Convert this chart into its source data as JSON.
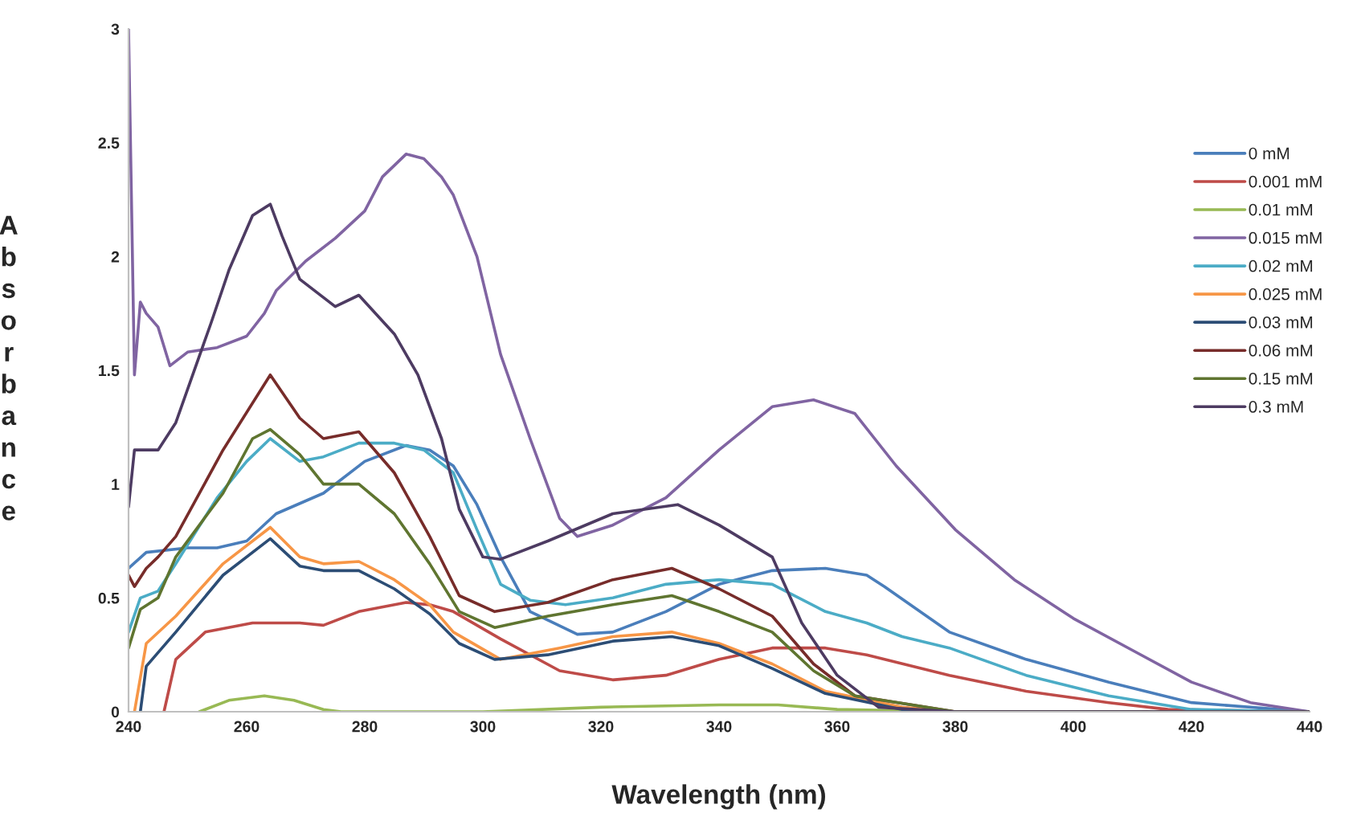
{
  "chart_data": {
    "type": "line",
    "xlabel": "Wavelength (nm)",
    "ylabel": "Absorbance",
    "xlim": [
      240,
      440
    ],
    "xticks": [
      240,
      260,
      280,
      300,
      320,
      340,
      360,
      380,
      400,
      420,
      440
    ],
    "ylim": [
      0,
      3
    ],
    "yticks": [
      0,
      0.5,
      1,
      1.5,
      2,
      2.5,
      3
    ],
    "legend": "right",
    "grid": false,
    "marker": "none",
    "line_style": "solid",
    "series": [
      {
        "name": "0 mM",
        "color": "#4a7ebb",
        "x": [
          240,
          243,
          250,
          255,
          260,
          265,
          273,
          280,
          287,
          291,
          295,
          299,
          303,
          308,
          316,
          322,
          331,
          340,
          349,
          358,
          365,
          368,
          379,
          392,
          406,
          420,
          440
        ],
        "values": [
          0.63,
          0.7,
          0.72,
          0.72,
          0.75,
          0.87,
          0.96,
          1.1,
          1.17,
          1.15,
          1.08,
          0.91,
          0.68,
          0.44,
          0.34,
          0.35,
          0.44,
          0.56,
          0.62,
          0.63,
          0.6,
          0.55,
          0.35,
          0.23,
          0.13,
          0.04,
          0
        ]
      },
      {
        "name": "0.001 mM",
        "color": "#be4b48",
        "x": [
          246,
          248,
          253,
          261,
          269,
          273,
          279,
          287,
          291,
          295,
          303,
          313,
          322,
          331,
          340,
          349,
          358,
          365,
          379,
          392,
          406,
          416,
          440
        ],
        "values": [
          0,
          0.23,
          0.35,
          0.39,
          0.39,
          0.38,
          0.44,
          0.48,
          0.47,
          0.44,
          0.32,
          0.18,
          0.14,
          0.16,
          0.23,
          0.28,
          0.28,
          0.25,
          0.16,
          0.09,
          0.04,
          0.01,
          0
        ]
      },
      {
        "name": "0.01 mM",
        "color": "#98b954",
        "x": [
          252,
          257,
          263,
          268,
          273,
          276,
          300,
          320,
          340,
          350,
          360,
          380,
          440
        ],
        "values": [
          0,
          0.05,
          0.07,
          0.05,
          0.01,
          0,
          0,
          0.02,
          0.03,
          0.03,
          0.01,
          0,
          0
        ]
      },
      {
        "name": "0.015 mM",
        "color": "#8064a2",
        "x": [
          240,
          241,
          242,
          243,
          245,
          247,
          250,
          255,
          260,
          263,
          265,
          270,
          275,
          280,
          283,
          287,
          290,
          293,
          295,
          299,
          303,
          308,
          313,
          316,
          322,
          331,
          340,
          349,
          356,
          363,
          370,
          380,
          390,
          400,
          410,
          420,
          430,
          440
        ],
        "values": [
          3,
          1.48,
          1.8,
          1.75,
          1.69,
          1.52,
          1.58,
          1.6,
          1.65,
          1.75,
          1.85,
          1.98,
          2.08,
          2.2,
          2.35,
          2.45,
          2.43,
          2.35,
          2.27,
          2.0,
          1.57,
          1.2,
          0.85,
          0.77,
          0.82,
          0.94,
          1.15,
          1.34,
          1.37,
          1.31,
          1.08,
          0.8,
          0.58,
          0.41,
          0.27,
          0.13,
          0.04,
          0
        ]
      },
      {
        "name": "0.02 mM",
        "color": "#4bacc6",
        "x": [
          240,
          242,
          245,
          248,
          255,
          260,
          264,
          269,
          273,
          279,
          285,
          290,
          295,
          299,
          303,
          308,
          314,
          322,
          331,
          340,
          349,
          358,
          365,
          371,
          379,
          392,
          406,
          420,
          440
        ],
        "values": [
          0.35,
          0.5,
          0.53,
          0.65,
          0.94,
          1.1,
          1.2,
          1.1,
          1.12,
          1.18,
          1.18,
          1.15,
          1.05,
          0.8,
          0.56,
          0.49,
          0.47,
          0.5,
          0.56,
          0.58,
          0.56,
          0.44,
          0.39,
          0.33,
          0.28,
          0.16,
          0.07,
          0.01,
          0
        ]
      },
      {
        "name": "0.025 mM",
        "color": "#f79646",
        "x": [
          241,
          243,
          248,
          256,
          264,
          269,
          273,
          279,
          285,
          291,
          295,
          303,
          313,
          322,
          332,
          340,
          349,
          358,
          371,
          380,
          440
        ],
        "values": [
          0,
          0.3,
          0.42,
          0.65,
          0.81,
          0.68,
          0.65,
          0.66,
          0.58,
          0.47,
          0.35,
          0.23,
          0.28,
          0.33,
          0.35,
          0.3,
          0.21,
          0.09,
          0.02,
          0,
          0
        ]
      },
      {
        "name": "0.03 mM",
        "color": "#2c4d75",
        "x": [
          242,
          243,
          248,
          256,
          264,
          269,
          273,
          279,
          285,
          291,
          296,
          302,
          311,
          322,
          332,
          340,
          349,
          358,
          371,
          380,
          440
        ],
        "values": [
          0,
          0.2,
          0.35,
          0.6,
          0.76,
          0.64,
          0.62,
          0.62,
          0.54,
          0.43,
          0.3,
          0.23,
          0.25,
          0.31,
          0.33,
          0.29,
          0.19,
          0.08,
          0.01,
          0,
          0
        ]
      },
      {
        "name": "0.06 mM",
        "color": "#772c2a",
        "x": [
          240,
          241,
          243,
          245,
          248,
          256,
          264,
          269,
          273,
          279,
          285,
          291,
          296,
          302,
          311,
          322,
          332,
          340,
          349,
          356,
          363,
          380,
          440
        ],
        "values": [
          0.6,
          0.55,
          0.63,
          0.68,
          0.77,
          1.15,
          1.48,
          1.29,
          1.2,
          1.23,
          1.05,
          0.77,
          0.51,
          0.44,
          0.48,
          0.58,
          0.63,
          0.54,
          0.42,
          0.21,
          0.07,
          0,
          0
        ]
      },
      {
        "name": "0.15 mM",
        "color": "#5f7530",
        "x": [
          240,
          242,
          245,
          248,
          256,
          261,
          264,
          269,
          273,
          279,
          285,
          291,
          296,
          302,
          311,
          322,
          332,
          340,
          349,
          356,
          363,
          380,
          440
        ],
        "values": [
          0.28,
          0.45,
          0.5,
          0.68,
          0.96,
          1.2,
          1.24,
          1.13,
          1.0,
          1.0,
          0.87,
          0.65,
          0.44,
          0.37,
          0.42,
          0.47,
          0.51,
          0.44,
          0.35,
          0.18,
          0.07,
          0,
          0
        ]
      },
      {
        "name": "0.3 mM",
        "color": "#4d3b62",
        "x": [
          240,
          241,
          245,
          248,
          254,
          257,
          261,
          264,
          266,
          269,
          275,
          279,
          285,
          289,
          293,
          296,
          300,
          303,
          311,
          322,
          333,
          340,
          349,
          354,
          360,
          367,
          380,
          440
        ],
        "values": [
          0.9,
          1.15,
          1.15,
          1.27,
          1.71,
          1.94,
          2.18,
          2.23,
          2.09,
          1.9,
          1.78,
          1.83,
          1.66,
          1.48,
          1.2,
          0.89,
          0.68,
          0.67,
          0.75,
          0.87,
          0.91,
          0.82,
          0.68,
          0.39,
          0.16,
          0.02,
          0,
          0
        ]
      }
    ]
  }
}
